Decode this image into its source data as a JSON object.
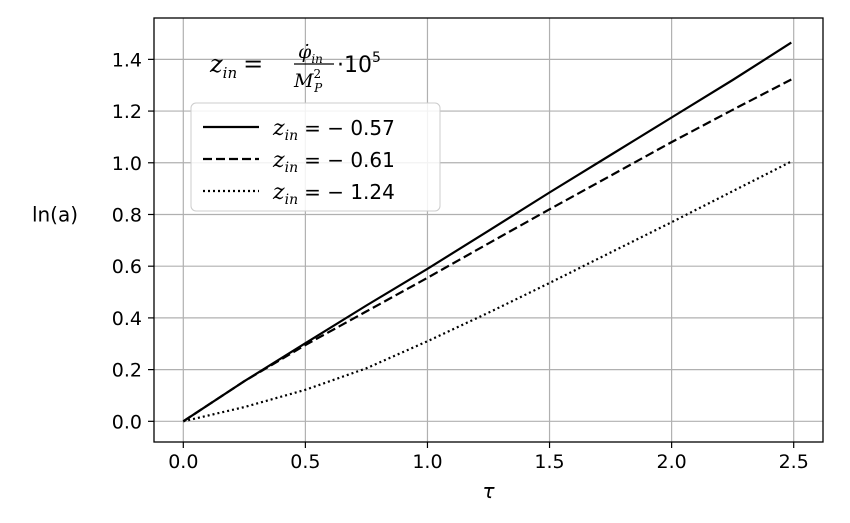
{
  "chart_data": {
    "type": "line",
    "xlabel": "τ",
    "ylabel": "ln(a)",
    "xlim": [
      -0.12,
      2.62
    ],
    "ylim": [
      -0.08,
      1.56
    ],
    "xticks": [
      0.0,
      0.5,
      1.0,
      1.5,
      2.0,
      2.5
    ],
    "xtick_labels": [
      "0.0",
      "0.5",
      "1.0",
      "1.5",
      "2.0",
      "2.5"
    ],
    "yticks": [
      0.0,
      0.2,
      0.4,
      0.6,
      0.8,
      1.0,
      1.2,
      1.4
    ],
    "ytick_labels": [
      "0.0",
      "0.2",
      "0.4",
      "0.6",
      "0.8",
      "1.0",
      "1.2",
      "1.4"
    ],
    "grid": true,
    "legend_position": "upper-left",
    "annotation": {
      "lhs": "z",
      "lhs_sub": "in",
      "equals": "=",
      "numerator": "φ̇",
      "numerator_sub": "in",
      "denominator": "M",
      "denominator_sup": "2",
      "denominator_sub": "P",
      "times": "·10",
      "exponent": "5"
    },
    "series": [
      {
        "name": "z_in = − 0.57",
        "legend_prefix": "z",
        "legend_sub": "in",
        "legend_value": "= − 0.57",
        "line_style": "solid",
        "x": [
          0.0,
          0.25,
          0.5,
          0.75,
          1.0,
          1.25,
          1.5,
          1.75,
          2.0,
          2.25,
          2.49
        ],
        "y": [
          0.0,
          0.155,
          0.302,
          0.448,
          0.59,
          0.737,
          0.885,
          1.03,
          1.175,
          1.32,
          1.465
        ]
      },
      {
        "name": "z_in = − 0.61",
        "legend_prefix": "z",
        "legend_sub": "in",
        "legend_value": "= − 0.61",
        "line_style": "dashed",
        "x": [
          0.0,
          0.25,
          0.5,
          0.75,
          1.0,
          1.25,
          1.5,
          1.75,
          2.0,
          2.25,
          2.49
        ],
        "y": [
          0.0,
          0.155,
          0.295,
          0.425,
          0.555,
          0.688,
          0.82,
          0.95,
          1.08,
          1.205,
          1.322
        ]
      },
      {
        "name": "z_in = − 1.24",
        "legend_prefix": "z",
        "legend_sub": "in",
        "legend_value": "= − 1.24",
        "line_style": "dotted",
        "x": [
          0.0,
          0.25,
          0.5,
          0.75,
          1.0,
          1.25,
          1.5,
          1.75,
          2.0,
          2.25,
          2.49
        ],
        "y": [
          0.0,
          0.055,
          0.122,
          0.205,
          0.31,
          0.42,
          0.535,
          0.653,
          0.77,
          0.89,
          1.005
        ]
      }
    ]
  }
}
